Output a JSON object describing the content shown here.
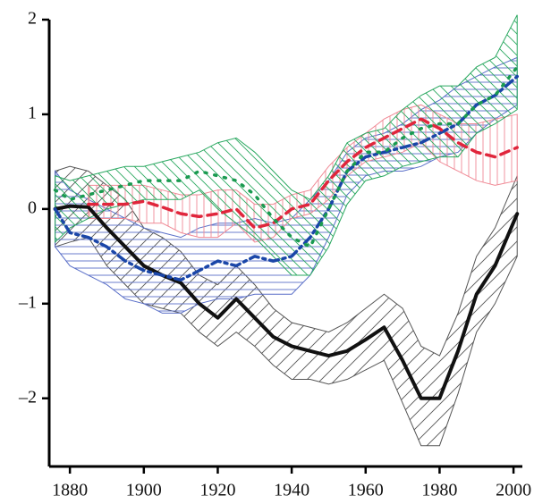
{
  "chart_data": {
    "type": "band-line",
    "x": [
      1876,
      1880,
      1885,
      1890,
      1895,
      1900,
      1905,
      1910,
      1915,
      1920,
      1925,
      1930,
      1935,
      1940,
      1945,
      1950,
      1955,
      1960,
      1965,
      1970,
      1975,
      1980,
      1985,
      1990,
      1995,
      2001
    ],
    "xlim": [
      1874.4,
      2002.4
    ],
    "xticks": [
      1880,
      1900,
      1920,
      1940,
      1960,
      1980,
      2000
    ],
    "ylim": [
      -2.72,
      2
    ],
    "yticks": [
      {
        "value": -2,
        "label": "–2"
      },
      {
        "value": -1,
        "label": "–1"
      },
      0,
      1,
      2
    ],
    "series": [
      {
        "color": "#111111",
        "band_color": "#555555",
        "hatch": "diagonal-up",
        "dash": "solid",
        "values": [
          0,
          0.03,
          0.02,
          -0.2,
          -0.4,
          -0.6,
          -0.7,
          -0.78,
          -1.0,
          -1.15,
          -0.95,
          -1.15,
          -1.35,
          -1.45,
          -1.5,
          -1.55,
          -1.5,
          -1.38,
          -1.25,
          -1.6,
          -2.0,
          -2.0,
          -1.5,
          -0.9,
          -0.6,
          -0.05
        ],
        "upper": [
          0.4,
          0.45,
          0.4,
          0.25,
          0.1,
          -0.2,
          -0.3,
          -0.45,
          -0.7,
          -0.8,
          -0.6,
          -0.8,
          -1.05,
          -1.2,
          -1.25,
          -1.3,
          -1.2,
          -1.05,
          -0.9,
          -1.05,
          -1.45,
          -1.55,
          -1.1,
          -0.5,
          -0.2,
          0.35
        ],
        "lower": [
          -0.4,
          -0.35,
          -0.3,
          -0.6,
          -0.8,
          -1.0,
          -1.05,
          -1.1,
          -1.3,
          -1.45,
          -1.3,
          -1.45,
          -1.65,
          -1.8,
          -1.8,
          -1.85,
          -1.8,
          -1.7,
          -1.6,
          -2.05,
          -2.5,
          -2.5,
          -1.95,
          -1.3,
          -1.0,
          -0.5
        ]
      },
      {
        "color": "#1a46a8",
        "band_color": "#5a6fc8",
        "hatch": "horizontal",
        "dash": "dashdot",
        "values": [
          0.0,
          -0.25,
          -0.3,
          -0.4,
          -0.55,
          -0.65,
          -0.7,
          -0.75,
          -0.65,
          -0.55,
          -0.6,
          -0.5,
          -0.55,
          -0.5,
          -0.3,
          0.0,
          0.4,
          0.55,
          0.6,
          0.65,
          0.7,
          0.8,
          0.9,
          1.1,
          1.2,
          1.4
        ],
        "upper": [
          0.4,
          0.2,
          0.1,
          0.0,
          -0.1,
          -0.2,
          -0.25,
          -0.3,
          -0.2,
          -0.15,
          -0.15,
          -0.1,
          -0.15,
          -0.1,
          0.1,
          0.3,
          0.6,
          0.75,
          0.8,
          0.9,
          1.05,
          1.15,
          1.3,
          1.4,
          1.5,
          1.6
        ],
        "lower": [
          -0.4,
          -0.6,
          -0.7,
          -0.8,
          -0.95,
          -1.0,
          -1.1,
          -1.1,
          -1.0,
          -0.95,
          -0.95,
          -0.9,
          -0.9,
          -0.9,
          -0.7,
          -0.3,
          0.15,
          0.35,
          0.4,
          0.4,
          0.45,
          0.55,
          0.6,
          0.8,
          0.95,
          1.1
        ]
      },
      {
        "color": "#e0263c",
        "band_color": "#f08a96",
        "hatch": "vertical",
        "dash": "dash",
        "values": [
          null,
          null,
          0.05,
          0.05,
          0.05,
          0.08,
          0.02,
          -0.05,
          -0.08,
          -0.05,
          0.0,
          -0.2,
          -0.15,
          0.0,
          0.05,
          0.3,
          0.5,
          0.65,
          0.75,
          0.85,
          0.95,
          0.85,
          0.7,
          0.6,
          0.55,
          0.65
        ],
        "upper": [
          null,
          null,
          0.25,
          0.25,
          0.25,
          0.25,
          0.2,
          0.15,
          0.15,
          0.2,
          0.2,
          0.05,
          0.05,
          0.15,
          0.2,
          0.45,
          0.65,
          0.8,
          0.95,
          1.05,
          1.1,
          1.0,
          0.9,
          0.9,
          0.95,
          1.0
        ],
        "lower": [
          null,
          null,
          -0.1,
          -0.1,
          -0.1,
          -0.15,
          -0.15,
          -0.25,
          -0.3,
          -0.3,
          -0.15,
          -0.35,
          -0.3,
          -0.1,
          -0.05,
          0.1,
          0.35,
          0.5,
          0.55,
          0.6,
          0.7,
          0.5,
          0.4,
          0.3,
          0.25,
          0.3
        ]
      },
      {
        "color": "#1a9a50",
        "band_color": "#2aa860",
        "hatch": "diagonal-down",
        "dash": "dot",
        "values": [
          0.2,
          0.1,
          0.15,
          0.2,
          0.25,
          0.3,
          0.3,
          0.3,
          0.4,
          0.35,
          0.3,
          0.15,
          -0.1,
          -0.3,
          -0.4,
          0.0,
          0.4,
          0.6,
          0.6,
          0.75,
          0.85,
          0.9,
          0.9,
          1.1,
          1.2,
          1.5
        ],
        "upper": [
          0.35,
          0.3,
          0.35,
          0.4,
          0.45,
          0.45,
          0.5,
          0.55,
          0.6,
          0.7,
          0.75,
          0.6,
          0.4,
          0.2,
          0.1,
          0.35,
          0.7,
          0.8,
          0.85,
          1.05,
          1.2,
          1.3,
          1.3,
          1.5,
          1.6,
          2.05
        ],
        "lower": [
          -0.35,
          -0.2,
          -0.1,
          0.0,
          0.05,
          0.1,
          0.1,
          0.1,
          0.2,
          0.0,
          -0.15,
          -0.3,
          -0.5,
          -0.7,
          -0.7,
          -0.4,
          0.05,
          0.3,
          0.35,
          0.45,
          0.5,
          0.55,
          0.55,
          0.8,
          0.9,
          1.05
        ]
      }
    ]
  }
}
